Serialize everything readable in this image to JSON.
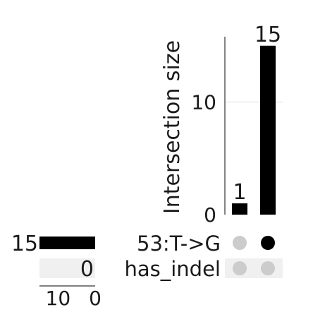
{
  "chart_data": {
    "type": "upset",
    "ylabel": "Intersection size",
    "y_ticks": [
      0,
      10
    ],
    "ylim": [
      0,
      15.8
    ],
    "set_size_ticks": [
      10,
      0
    ],
    "set_size_xlim": [
      0,
      15
    ],
    "sets": [
      {
        "name": "53:T->G",
        "size": 15,
        "size_label": "15"
      },
      {
        "name": "has_indel",
        "size": 0,
        "size_label": "0"
      }
    ],
    "intersections": [
      {
        "size": 1,
        "label": "1",
        "members": [
          false,
          false
        ]
      },
      {
        "size": 15,
        "label": "15",
        "members": [
          true,
          false
        ]
      }
    ],
    "grid": true
  },
  "colors": {
    "bar": "#000000",
    "dot_active": "#000000",
    "dot_inactive": "#cccccc",
    "grid": "#dddddd",
    "axis": "#333333",
    "row_shade": "#f0f0f0"
  }
}
